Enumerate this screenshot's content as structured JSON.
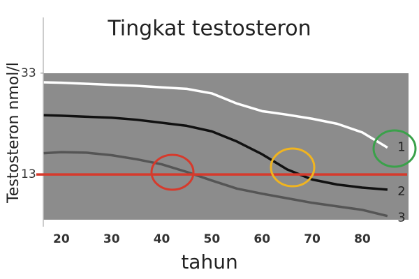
{
  "chart_data": {
    "type": "line",
    "title": "Tingkat testosteron",
    "x_label": "tahun",
    "y_label": "Testosteron nmol/l",
    "x": [
      16.5,
      20,
      25,
      30,
      35,
      40,
      45,
      50,
      55,
      60,
      65,
      70,
      75,
      80,
      85
    ],
    "series": [
      {
        "name": "1",
        "color": "#ffffff",
        "values": [
          31.2,
          31.1,
          30.9,
          30.7,
          30.5,
          30.2,
          29.9,
          29.0,
          27.0,
          25.5,
          24.8,
          24.0,
          23.0,
          21.3,
          18.3
        ]
      },
      {
        "name": "2",
        "color": "#111111",
        "values": [
          24.7,
          24.6,
          24.4,
          24.2,
          23.8,
          23.2,
          22.6,
          21.5,
          19.5,
          17.0,
          14.0,
          12.0,
          11.0,
          10.4,
          10.0
        ]
      },
      {
        "name": "3",
        "color": "#555555",
        "values": [
          17.2,
          17.4,
          17.3,
          16.8,
          16.0,
          15.0,
          13.5,
          11.8,
          10.2,
          9.2,
          8.3,
          7.4,
          6.7,
          6.0,
          4.8
        ]
      }
    ],
    "reference_line": {
      "value": 13,
      "color": "#d63a2c"
    },
    "xlim": [
      16.4,
      89.2
    ],
    "ylim": [
      2,
      44
    ],
    "xticks": [
      20,
      30,
      40,
      50,
      60,
      70,
      80
    ],
    "yticks": [
      13,
      33
    ]
  }
}
